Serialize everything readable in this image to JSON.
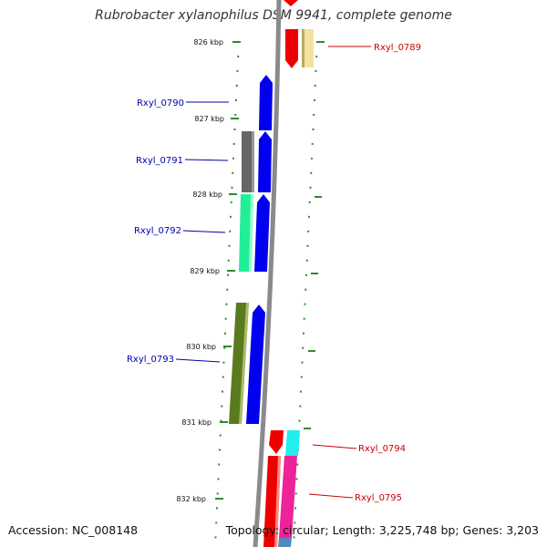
{
  "title": "Rubrobacter xylanophilus DSM 9941, complete genome",
  "footer": {
    "accession": "Accession: NC_008148",
    "summary": "Topology: circular; Length: 3,225,748 bp; Genes: 3,203"
  },
  "colors": {
    "forward_label": "#cc0000",
    "reverse_label": "#0000aa",
    "ruler": "#999999",
    "tick": "#2e8b2e"
  },
  "ticks": [
    "826 kbp",
    "827 kbp",
    "828 kbp",
    "829 kbp",
    "830 kbp",
    "831 kbp",
    "832 kbp"
  ],
  "genes": [
    {
      "label": "Rxyl_0789",
      "strand": "+"
    },
    {
      "label": "Rxyl_0790",
      "strand": "-"
    },
    {
      "label": "Rxyl_0791",
      "strand": "-"
    },
    {
      "label": "Rxyl_0792",
      "strand": "-"
    },
    {
      "label": "Rxyl_0793",
      "strand": "-"
    },
    {
      "label": "Rxyl_0794",
      "strand": "+"
    },
    {
      "label": "Rxyl_0795",
      "strand": "+"
    }
  ]
}
